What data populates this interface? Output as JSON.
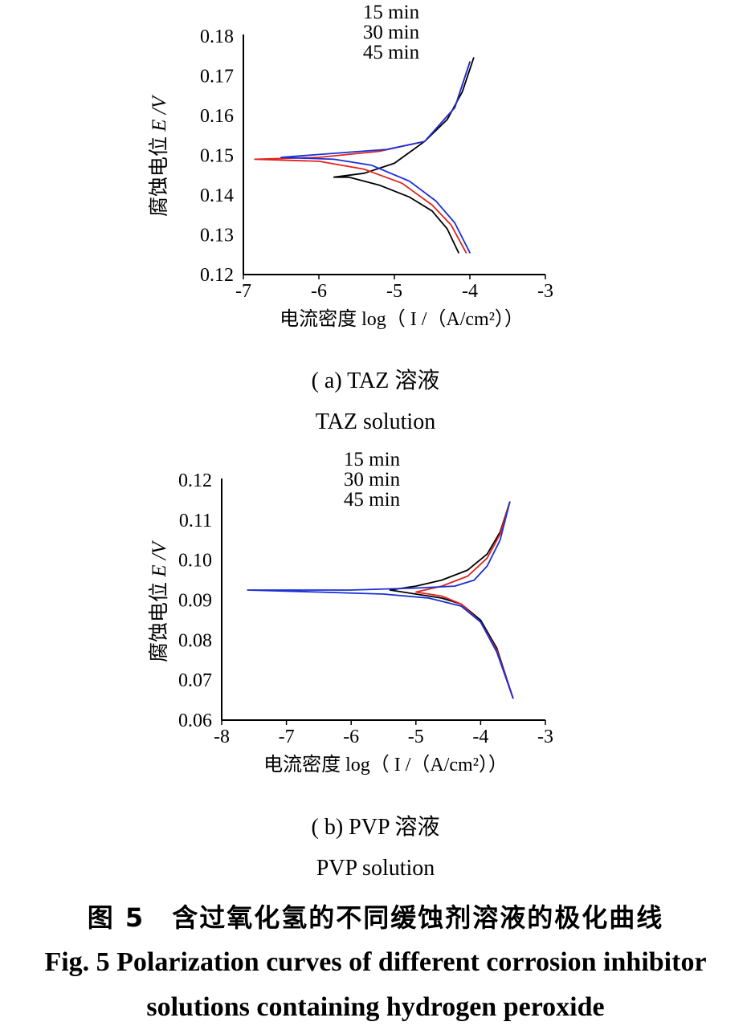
{
  "chart_data": [
    {
      "type": "line",
      "legend": [
        "15 min",
        "30 min",
        "45 min"
      ],
      "legend_placement": "top-center",
      "xlabel_cn": "电流密度",
      "xlabel_unit": "log（ I /（A/cm²））",
      "ylabel_cn": "腐蚀电位",
      "ylabel_unit": "E /V",
      "xlim": [
        -7,
        -3
      ],
      "ylim": [
        0.12,
        0.18
      ],
      "xticks": [
        "-7",
        "-6",
        "-5",
        "-4",
        "-3"
      ],
      "yticks": [
        "0.18",
        "0.17",
        "0.16",
        "0.15",
        "0.14",
        "0.13",
        "0.12"
      ],
      "grid": false,
      "series": [
        {
          "name": "15 min",
          "color": "#000000",
          "x": [
            -3.95,
            -4.1,
            -4.3,
            -4.6,
            -5.0,
            -5.4,
            -5.8,
            -5.6,
            -5.2,
            -4.8,
            -4.5,
            -4.3,
            -4.15
          ],
          "y": [
            0.1745,
            0.166,
            0.159,
            0.1535,
            0.148,
            0.1455,
            0.1445,
            0.1445,
            0.1425,
            0.1395,
            0.136,
            0.1315,
            0.1255
          ]
        },
        {
          "name": "30 min",
          "color": "#e0231c",
          "x": [
            -4.0,
            -4.2,
            -4.6,
            -5.2,
            -6.0,
            -6.85,
            -6.0,
            -5.4,
            -4.9,
            -4.5,
            -4.25,
            -4.05
          ],
          "y": [
            0.1735,
            0.162,
            0.1535,
            0.151,
            0.1495,
            0.149,
            0.1485,
            0.1465,
            0.143,
            0.1375,
            0.1325,
            0.1255
          ]
        },
        {
          "name": "45 min",
          "color": "#1a2fd6",
          "x": [
            -4.0,
            -4.2,
            -4.6,
            -5.1,
            -5.8,
            -6.5,
            -5.8,
            -5.3,
            -4.8,
            -4.45,
            -4.2,
            -4.0
          ],
          "y": [
            0.1735,
            0.162,
            0.1535,
            0.1515,
            0.1505,
            0.1495,
            0.149,
            0.1475,
            0.1435,
            0.1385,
            0.133,
            0.1255
          ]
        }
      ]
    },
    {
      "type": "line",
      "legend": [
        "15 min",
        "30 min",
        "45 min"
      ],
      "legend_placement": "top-center",
      "xlabel_cn": "电流密度",
      "xlabel_unit": "log（ I /（A/cm²））",
      "ylabel_cn": "腐蚀电位",
      "ylabel_unit": "E /V",
      "xlim": [
        -8,
        -3
      ],
      "ylim": [
        0.06,
        0.12
      ],
      "xticks": [
        "-8",
        "-7",
        "-6",
        "-5",
        "-4",
        "-3"
      ],
      "yticks": [
        "0.12",
        "0.11",
        "0.10",
        "0.09",
        "0.08",
        "0.07",
        "0.06"
      ],
      "grid": false,
      "series": [
        {
          "name": "15 min",
          "color": "#000000",
          "x": [
            -3.55,
            -3.7,
            -3.9,
            -4.2,
            -4.6,
            -5.0,
            -5.4,
            -5.0,
            -4.6,
            -4.3,
            -4.0,
            -3.75,
            -3.5
          ],
          "y": [
            0.1145,
            0.107,
            0.1015,
            0.0975,
            0.095,
            0.0935,
            0.0925,
            0.0915,
            0.0905,
            0.089,
            0.085,
            0.078,
            0.0655
          ]
        },
        {
          "name": "30 min",
          "color": "#e0231c",
          "x": [
            -3.55,
            -3.7,
            -3.9,
            -4.2,
            -4.6,
            -5.0,
            -4.6,
            -4.3,
            -4.0,
            -3.75,
            -3.5
          ],
          "y": [
            0.1145,
            0.1065,
            0.1005,
            0.096,
            0.0935,
            0.092,
            0.091,
            0.089,
            0.0845,
            0.0775,
            0.0655
          ]
        },
        {
          "name": "45 min",
          "color": "#1a2fd6",
          "x": [
            -3.55,
            -3.7,
            -3.9,
            -4.1,
            -4.4,
            -5.0,
            -6.0,
            -7.6,
            -6.5,
            -5.5,
            -4.8,
            -4.3,
            -4.0,
            -3.75,
            -3.5
          ],
          "y": [
            0.1145,
            0.105,
            0.0985,
            0.095,
            0.0935,
            0.093,
            0.0925,
            0.0925,
            0.092,
            0.0915,
            0.0905,
            0.0885,
            0.0845,
            0.077,
            0.0655
          ]
        }
      ]
    }
  ],
  "captions": {
    "a_cn": "( a) TAZ 溶液",
    "a_en": "TAZ solution",
    "b_cn": "( b) PVP 溶液",
    "b_en": "PVP solution",
    "fig_cn": "图 5　含过氧化氢的不同缓蚀剂溶液的极化曲线",
    "fig_en_1": "Fig. 5 Polarization curves of different corrosion inhibitor",
    "fig_en_2": "solutions containing hydrogen peroxide"
  }
}
